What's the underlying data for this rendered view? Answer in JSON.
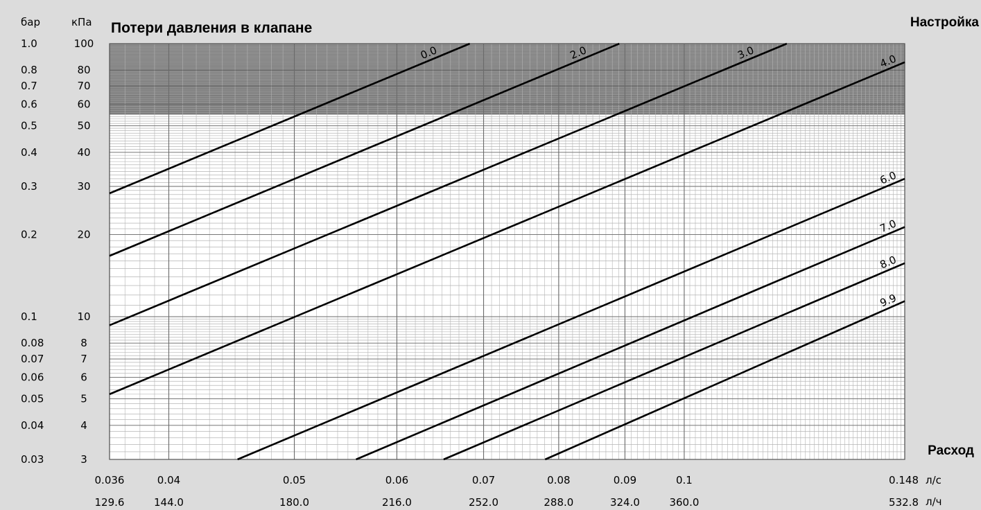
{
  "chart_data": {
    "type": "line",
    "title": "Потери давления в клапане",
    "legend_title": "Настройка",
    "xlabel": "Расход",
    "x_scale": "log",
    "y_scale": "log",
    "xlim": [
      0.036,
      0.148
    ],
    "ylim_kpa": [
      3,
      100
    ],
    "shaded_region_kpa": [
      55,
      100
    ],
    "grid": true,
    "y_units": [
      "бар",
      "кПа"
    ],
    "x_units": [
      "л/с",
      "л/ч"
    ],
    "y_ticks": [
      {
        "bar": "1.0",
        "kpa": "100",
        "value": 100
      },
      {
        "bar": "0.8",
        "kpa": "80",
        "value": 80
      },
      {
        "bar": "0.7",
        "kpa": "70",
        "value": 70
      },
      {
        "bar": "0.6",
        "kpa": "60",
        "value": 60
      },
      {
        "bar": "0.5",
        "kpa": "50",
        "value": 50
      },
      {
        "bar": "0.4",
        "kpa": "40",
        "value": 40
      },
      {
        "bar": "0.3",
        "kpa": "30",
        "value": 30
      },
      {
        "bar": "0.2",
        "kpa": "20",
        "value": 20
      },
      {
        "bar": "0.1",
        "kpa": "10",
        "value": 10
      },
      {
        "bar": "0.08",
        "kpa": "8",
        "value": 8
      },
      {
        "bar": "0.07",
        "kpa": "7",
        "value": 7
      },
      {
        "bar": "0.06",
        "kpa": "6",
        "value": 6
      },
      {
        "bar": "0.05",
        "kpa": "5",
        "value": 5
      },
      {
        "bar": "0.04",
        "kpa": "4",
        "value": 4
      },
      {
        "bar": "0.03",
        "kpa": "3",
        "value": 3
      }
    ],
    "x_ticks": [
      {
        "ls": "0.036",
        "lh": "129.6",
        "value": 0.036
      },
      {
        "ls": "0.04",
        "lh": "144.0",
        "value": 0.04
      },
      {
        "ls": "0.05",
        "lh": "180.0",
        "value": 0.05
      },
      {
        "ls": "0.06",
        "lh": "216.0",
        "value": 0.06
      },
      {
        "ls": "0.07",
        "lh": "252.0",
        "value": 0.07
      },
      {
        "ls": "0.08",
        "lh": "288.0",
        "value": 0.08
      },
      {
        "ls": "0.09",
        "lh": "324.0",
        "value": 0.09
      },
      {
        "ls": "0.1",
        "lh": "360.0",
        "value": 0.1
      },
      {
        "ls": "0.148",
        "lh": "532.8",
        "value": 0.148
      }
    ],
    "series": [
      {
        "name": "0.0",
        "slope": 0.948,
        "points": [
          [
            0.036,
            28.3
          ],
          [
            0.0683,
            100
          ]
        ]
      },
      {
        "name": "2.0",
        "slope": 0.948,
        "points": [
          [
            0.036,
            16.7
          ],
          [
            0.0891,
            100
          ]
        ]
      },
      {
        "name": "3.0",
        "slope": 0.948,
        "points": [
          [
            0.036,
            9.3
          ],
          [
            0.12,
            100
          ]
        ]
      },
      {
        "name": "4.0",
        "slope": 0.948,
        "points": [
          [
            0.036,
            5.2
          ],
          [
            0.148,
            85.5
          ]
        ]
      },
      {
        "name": "6.0",
        "slope": 0.948,
        "points": [
          [
            0.0452,
            3
          ],
          [
            0.148,
            32.0
          ]
        ]
      },
      {
        "name": "7.0",
        "slope": 0.948,
        "points": [
          [
            0.0558,
            3
          ],
          [
            0.148,
            21.3
          ]
        ]
      },
      {
        "name": "8.0",
        "slope": 0.948,
        "points": [
          [
            0.0652,
            3
          ],
          [
            0.148,
            15.7
          ]
        ]
      },
      {
        "name": "9.9",
        "slope": 0.948,
        "points": [
          [
            0.0781,
            3
          ],
          [
            0.148,
            11.4
          ]
        ]
      }
    ]
  }
}
